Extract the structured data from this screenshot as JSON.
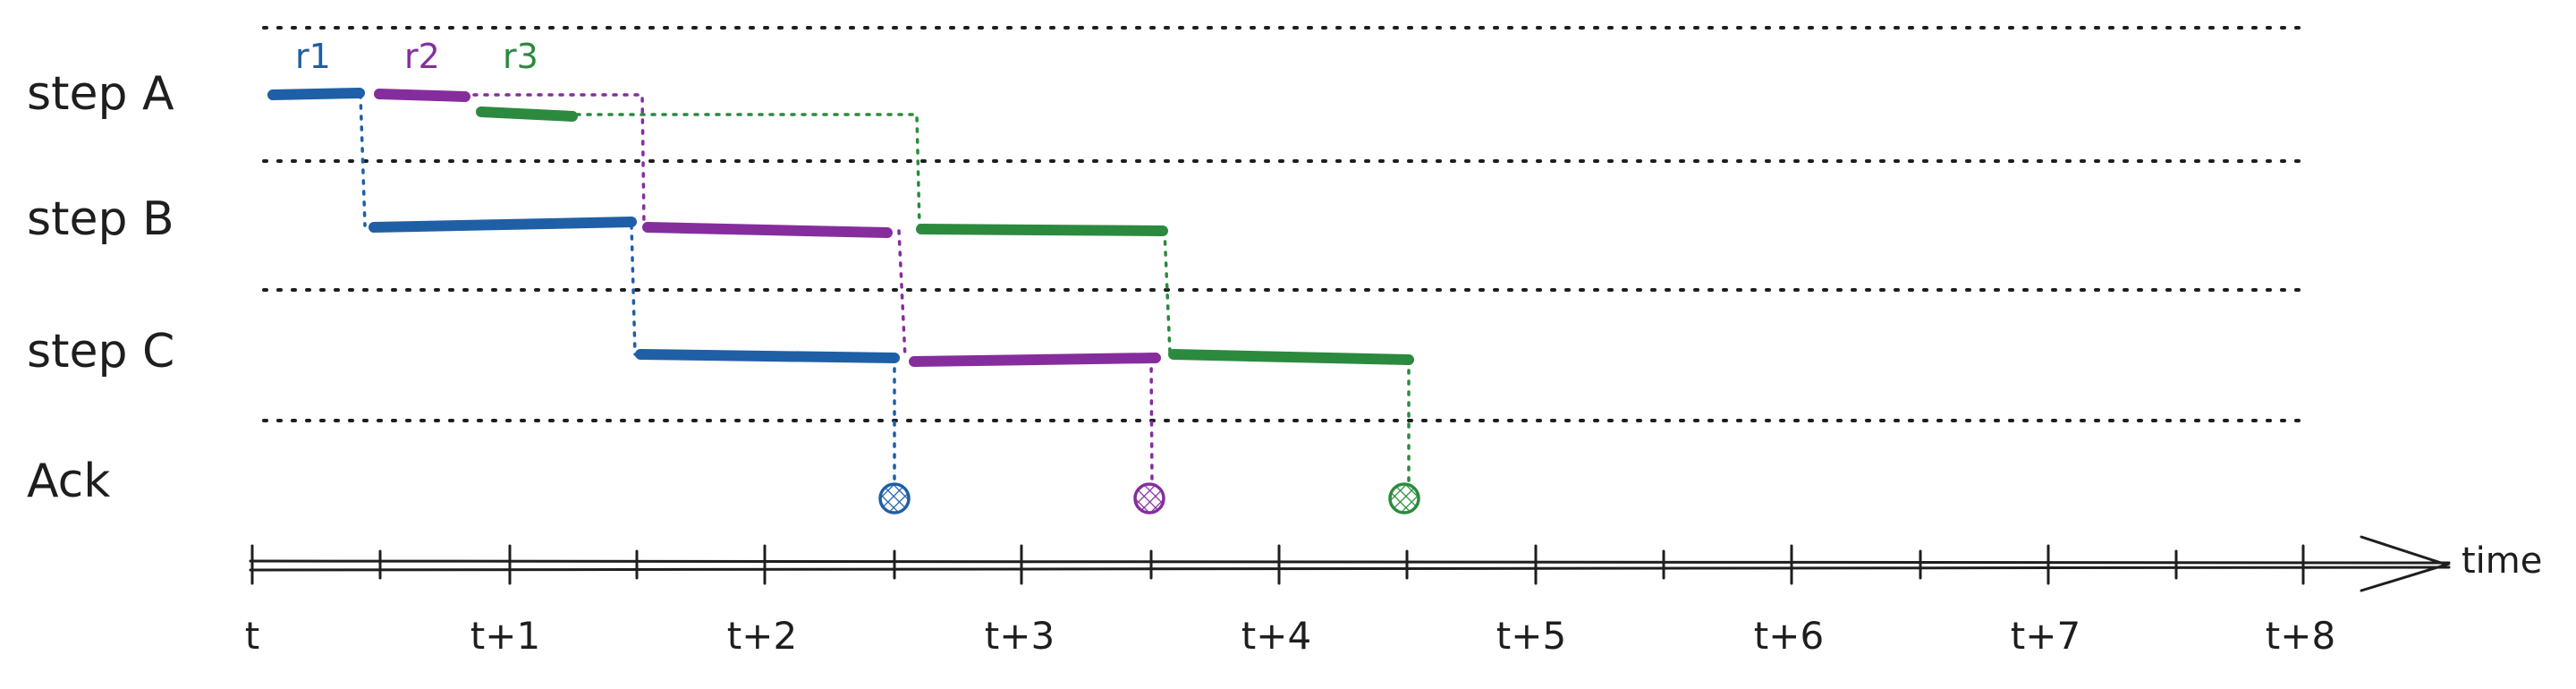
{
  "rows": [
    "step A",
    "step B",
    "step C",
    "Ack"
  ],
  "time_axis": {
    "label": "time",
    "ticks": [
      "t",
      "t+1",
      "t+2",
      "t+3",
      "t+4",
      "t+5",
      "t+6",
      "t+7",
      "t+8"
    ]
  },
  "requests": [
    {
      "label": "r1",
      "color": "#1f5fa6",
      "segments": [
        {
          "row": 0,
          "start": 0.05,
          "end": 0.42
        },
        {
          "row": 1,
          "start": 0.47,
          "end": 1.5
        },
        {
          "row": 2,
          "start": 1.5,
          "end": 2.5
        }
      ],
      "ack": 2.5
    },
    {
      "label": "r2",
      "color": "#862d9e",
      "segments": [
        {
          "row": 0,
          "start": 0.47,
          "end": 0.82
        },
        {
          "row": 1,
          "start": 1.55,
          "end": 2.5
        },
        {
          "row": 2,
          "start": 2.55,
          "end": 3.5
        }
      ],
      "ack": 3.5
    },
    {
      "label": "r3",
      "color": "#2b8a3e",
      "segments": [
        {
          "row": 0,
          "start": 0.87,
          "end": 1.25
        },
        {
          "row": 1,
          "start": 2.55,
          "end": 3.55
        },
        {
          "row": 2,
          "start": 3.6,
          "end": 4.5
        }
      ],
      "ack": 4.5
    }
  ]
}
